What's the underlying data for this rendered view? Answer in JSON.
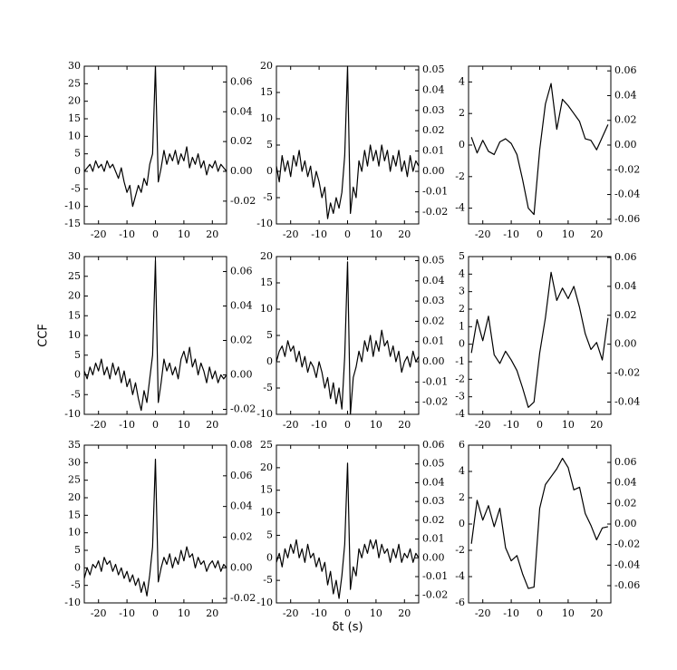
{
  "chart_data": [
    {
      "type": "line",
      "xlim": [
        -25,
        25
      ],
      "xticks": [
        -20,
        -10,
        0,
        10,
        20
      ],
      "ylim": [
        -15,
        30
      ],
      "yticks": [
        -15,
        -10,
        -5,
        0,
        5,
        10,
        15,
        20,
        25,
        30
      ],
      "y2lim": [
        -0.0353,
        0.0706
      ],
      "y2ticks": [
        -0.02,
        {
          "value": 0,
          "label": "0.00"
        },
        0.02,
        0.04,
        0.06
      ],
      "x": [
        -25,
        -24,
        -23,
        -22,
        -21,
        -20,
        -19,
        -18,
        -17,
        -16,
        -15,
        -14,
        -13,
        -12,
        -11,
        -10,
        -9,
        -8,
        -7,
        -6,
        -5,
        -4,
        -3,
        -2,
        -1,
        0,
        1,
        2,
        3,
        4,
        5,
        6,
        7,
        8,
        9,
        10,
        11,
        12,
        13,
        14,
        15,
        16,
        17,
        18,
        19,
        20,
        21,
        22,
        23,
        24,
        25
      ],
      "series": [
        {
          "color": "#000000",
          "values": [
            0,
            1,
            2,
            0,
            3,
            1,
            2,
            0,
            3,
            1,
            2,
            0,
            -2,
            1,
            -3,
            -6,
            -4,
            -10,
            -7,
            -4,
            -6,
            -2,
            -4,
            2,
            5,
            30,
            -3,
            1,
            6,
            2,
            5,
            3,
            6,
            2,
            5,
            3,
            7,
            1,
            4,
            2,
            5,
            1,
            3,
            -1,
            2,
            1,
            3,
            0,
            2,
            1,
            0
          ]
        }
      ]
    },
    {
      "type": "line",
      "xlim": [
        -25,
        25
      ],
      "xticks": [
        -20,
        -10,
        0,
        10,
        20
      ],
      "ylim": [
        -10,
        20
      ],
      "yticks": [
        -10,
        -5,
        0,
        5,
        10,
        15,
        20
      ],
      "y2lim": [
        -0.0259,
        0.0518
      ],
      "y2ticks": [
        -0.02,
        -0.01,
        {
          "value": 0,
          "label": "0.00"
        },
        0.01,
        0.02,
        0.03,
        0.04,
        0.05
      ],
      "x": [
        -25,
        -24,
        -23,
        -22,
        -21,
        -20,
        -19,
        -18,
        -17,
        -16,
        -15,
        -14,
        -13,
        -12,
        -11,
        -10,
        -9,
        -8,
        -7,
        -6,
        -5,
        -4,
        -3,
        -2,
        -1,
        0,
        1,
        2,
        3,
        4,
        5,
        6,
        7,
        8,
        9,
        10,
        11,
        12,
        13,
        14,
        15,
        16,
        17,
        18,
        19,
        20,
        21,
        22,
        23,
        24,
        25
      ],
      "series": [
        {
          "color": "#000000",
          "values": [
            1,
            -2,
            3,
            0,
            2,
            -1,
            3,
            1,
            4,
            0,
            2,
            -1,
            1,
            -3,
            0,
            -2,
            -5,
            -3,
            -9,
            -6,
            -8,
            -5,
            -7,
            -4,
            3,
            20,
            -8,
            -3,
            -5,
            2,
            0,
            4,
            1,
            5,
            2,
            4,
            1,
            5,
            2,
            4,
            0,
            3,
            1,
            4,
            0,
            2,
            -1,
            3,
            0,
            2,
            1
          ]
        }
      ]
    },
    {
      "type": "line",
      "xlim": [
        -25,
        25
      ],
      "xticks": [
        -20,
        -10,
        0,
        10,
        20
      ],
      "ylim": [
        -5,
        5
      ],
      "yticks": [
        -4,
        -2,
        0,
        2,
        4
      ],
      "y2lim": [
        -0.0638,
        0.0638
      ],
      "y2ticks": [
        -0.06,
        -0.04,
        -0.02,
        {
          "value": 0,
          "label": "0.00"
        },
        0.02,
        0.04,
        0.06
      ],
      "x": [
        -24,
        -22,
        -20,
        -18,
        -16,
        -14,
        -12,
        -10,
        -8,
        -6,
        -4,
        -2,
        0,
        2,
        4,
        6,
        8,
        10,
        12,
        14,
        16,
        18,
        20,
        22,
        24
      ],
      "series": [
        {
          "color": "#000000",
          "values": [
            0.5,
            -0.5,
            0.3,
            -0.4,
            -0.6,
            0.2,
            0.4,
            0.1,
            -0.6,
            -2.2,
            -4,
            -4.4,
            -0.3,
            2.6,
            3.9,
            1.0,
            2.9,
            2.5,
            2.0,
            1.5,
            0.4,
            0.3,
            -0.3,
            0.5,
            1.3
          ]
        }
      ]
    },
    {
      "type": "line",
      "xlim": [
        -25,
        25
      ],
      "xticks": [
        -20,
        -10,
        0,
        10,
        20
      ],
      "ylim": [
        -10,
        30
      ],
      "yticks": [
        -10,
        -5,
        0,
        5,
        10,
        15,
        20,
        25,
        30
      ],
      "y2lim": [
        -0.0229,
        0.0687
      ],
      "y2ticks": [
        -0.02,
        {
          "value": 0,
          "label": "0.00"
        },
        0.02,
        0.04,
        0.06
      ],
      "ylabel": "CCF",
      "x": [
        -25,
        -24,
        -23,
        -22,
        -21,
        -20,
        -19,
        -18,
        -17,
        -16,
        -15,
        -14,
        -13,
        -12,
        -11,
        -10,
        -9,
        -8,
        -7,
        -6,
        -5,
        -4,
        -3,
        -2,
        -1,
        0,
        1,
        2,
        3,
        4,
        5,
        6,
        7,
        8,
        9,
        10,
        11,
        12,
        13,
        14,
        15,
        16,
        17,
        18,
        19,
        20,
        21,
        22,
        23,
        24,
        25
      ],
      "series": [
        {
          "color": "#000000",
          "values": [
            1,
            -1,
            2,
            0,
            3,
            1,
            4,
            0,
            2,
            -1,
            3,
            0,
            2,
            -2,
            1,
            -3,
            -1,
            -5,
            -2,
            -6,
            -9,
            -4,
            -7,
            -1,
            5,
            29,
            -7,
            -2,
            4,
            1,
            3,
            0,
            2,
            -1,
            4,
            6,
            3,
            7,
            2,
            4,
            0,
            3,
            1,
            -2,
            2,
            -1,
            1,
            -2,
            0,
            -1,
            0
          ]
        }
      ]
    },
    {
      "type": "line",
      "xlim": [
        -25,
        25
      ],
      "xticks": [
        -20,
        -10,
        0,
        10,
        20
      ],
      "ylim": [
        -10,
        20
      ],
      "yticks": [
        -10,
        -5,
        0,
        5,
        10,
        15,
        20
      ],
      "y2lim": [
        -0.026,
        0.052
      ],
      "y2ticks": [
        -0.02,
        -0.01,
        {
          "value": 0,
          "label": "0.00"
        },
        0.01,
        0.02,
        0.03,
        0.04,
        0.05
      ],
      "x": [
        -25,
        -24,
        -23,
        -22,
        -21,
        -20,
        -19,
        -18,
        -17,
        -16,
        -15,
        -14,
        -13,
        -12,
        -11,
        -10,
        -9,
        -8,
        -7,
        -6,
        -5,
        -4,
        -3,
        -2,
        -1,
        0,
        1,
        2,
        3,
        4,
        5,
        6,
        7,
        8,
        9,
        10,
        11,
        12,
        13,
        14,
        15,
        16,
        17,
        18,
        19,
        20,
        21,
        22,
        23,
        24,
        25
      ],
      "series": [
        {
          "color": "#000000",
          "values": [
            0,
            2,
            3,
            1,
            4,
            2,
            3,
            0,
            2,
            -1,
            1,
            -2,
            0,
            -1,
            -3,
            0,
            -2,
            -5,
            -3,
            -7,
            -4,
            -8,
            -5,
            -9,
            1,
            19,
            -10,
            -3,
            -1,
            2,
            0,
            4,
            2,
            5,
            1,
            4,
            2,
            6,
            3,
            4,
            1,
            3,
            0,
            2,
            -2,
            0,
            1,
            -1,
            2,
            0,
            1
          ]
        }
      ]
    },
    {
      "type": "line",
      "xlim": [
        -25,
        25
      ],
      "xticks": [
        -20,
        -10,
        0,
        10,
        20
      ],
      "ylim": [
        -4,
        5
      ],
      "yticks": [
        -4,
        -3,
        -2,
        -1,
        0,
        1,
        2,
        3,
        4,
        5
      ],
      "y2lim": [
        -0.0485,
        0.0606
      ],
      "y2ticks": [
        -0.04,
        -0.02,
        {
          "value": 0,
          "label": "0.00"
        },
        0.02,
        0.04,
        0.06
      ],
      "x": [
        -24,
        -22,
        -20,
        -18,
        -16,
        -14,
        -12,
        -10,
        -8,
        -6,
        -4,
        -2,
        0,
        2,
        4,
        6,
        8,
        10,
        12,
        14,
        16,
        18,
        20,
        22,
        24
      ],
      "series": [
        {
          "color": "#000000",
          "values": [
            -0.5,
            1.4,
            0.2,
            1.6,
            -0.6,
            -1.1,
            -0.4,
            -0.9,
            -1.5,
            -2.5,
            -3.6,
            -3.3,
            -0.5,
            1.5,
            4.1,
            2.5,
            3.2,
            2.6,
            3.3,
            2.1,
            0.6,
            -0.3,
            0.1,
            -0.9,
            1.5
          ]
        }
      ]
    },
    {
      "type": "line",
      "xlim": [
        -25,
        25
      ],
      "xticks": [
        -20,
        -10,
        0,
        10,
        20
      ],
      "ylim": [
        -10,
        35
      ],
      "yticks": [
        -10,
        -5,
        0,
        5,
        10,
        15,
        20,
        25,
        30,
        35
      ],
      "y2lim": [
        -0.0229,
        0.08
      ],
      "y2ticks": [
        -0.02,
        {
          "value": 0,
          "label": "0.00"
        },
        0.02,
        0.04,
        0.06,
        0.08
      ],
      "x": [
        -25,
        -24,
        -23,
        -22,
        -21,
        -20,
        -19,
        -18,
        -17,
        -16,
        -15,
        -14,
        -13,
        -12,
        -11,
        -10,
        -9,
        -8,
        -7,
        -6,
        -5,
        -4,
        -3,
        -2,
        -1,
        0,
        1,
        2,
        3,
        4,
        5,
        6,
        7,
        8,
        9,
        10,
        11,
        12,
        13,
        14,
        15,
        16,
        17,
        18,
        19,
        20,
        21,
        22,
        23,
        24,
        25
      ],
      "series": [
        {
          "color": "#000000",
          "values": [
            -3,
            0,
            -2,
            1,
            0,
            2,
            -1,
            3,
            1,
            2,
            -1,
            1,
            -2,
            0,
            -3,
            -1,
            -4,
            -2,
            -5,
            -3,
            -7,
            -4,
            -8,
            -2,
            6,
            31,
            -4,
            0,
            3,
            1,
            4,
            0,
            3,
            1,
            5,
            2,
            6,
            3,
            4,
            0,
            3,
            1,
            2,
            -1,
            1,
            2,
            0,
            2,
            -1,
            1,
            0
          ]
        }
      ]
    },
    {
      "type": "line",
      "xlim": [
        -25,
        25
      ],
      "xticks": [
        -20,
        -10,
        0,
        10,
        20
      ],
      "ylim": [
        -10,
        25
      ],
      "yticks": [
        -10,
        -5,
        0,
        5,
        10,
        15,
        20,
        25
      ],
      "y2lim": [
        -0.024,
        0.06
      ],
      "y2ticks": [
        -0.02,
        -0.01,
        {
          "value": 0,
          "label": "0.00"
        },
        0.01,
        0.02,
        0.03,
        0.04,
        0.05,
        0.06
      ],
      "xlabel": "δt (s)",
      "x": [
        -25,
        -24,
        -23,
        -22,
        -21,
        -20,
        -19,
        -18,
        -17,
        -16,
        -15,
        -14,
        -13,
        -12,
        -11,
        -10,
        -9,
        -8,
        -7,
        -6,
        -5,
        -4,
        -3,
        -2,
        -1,
        0,
        1,
        2,
        3,
        4,
        5,
        6,
        7,
        8,
        9,
        10,
        11,
        12,
        13,
        14,
        15,
        16,
        17,
        18,
        19,
        20,
        21,
        22,
        23,
        24,
        25
      ],
      "series": [
        {
          "color": "#000000",
          "values": [
            -1,
            1,
            -2,
            2,
            0,
            3,
            1,
            4,
            0,
            2,
            -1,
            3,
            0,
            1,
            -2,
            0,
            -3,
            -1,
            -6,
            -3,
            -8,
            -5,
            -9,
            -4,
            3,
            21,
            -7,
            -2,
            -4,
            2,
            0,
            3,
            1,
            4,
            2,
            4,
            0,
            3,
            1,
            2,
            -1,
            2,
            0,
            3,
            -1,
            1,
            0,
            2,
            -1,
            1,
            0
          ]
        }
      ]
    },
    {
      "type": "line",
      "xlim": [
        -25,
        25
      ],
      "xticks": [
        -20,
        -10,
        0,
        10,
        20
      ],
      "ylim": [
        -6,
        6
      ],
      "yticks": [
        -6,
        -4,
        -2,
        0,
        2,
        4,
        6
      ],
      "y2lim": [
        -0.0768,
        0.0768
      ],
      "y2ticks": [
        -0.06,
        -0.04,
        -0.02,
        {
          "value": 0,
          "label": "0.00"
        },
        0.02,
        0.04,
        0.06
      ],
      "x": [
        -24,
        -22,
        -20,
        -18,
        -16,
        -14,
        -12,
        -10,
        -8,
        -6,
        -4,
        -2,
        0,
        2,
        4,
        6,
        8,
        10,
        12,
        14,
        16,
        18,
        20,
        22,
        24
      ],
      "series": [
        {
          "color": "#000000",
          "values": [
            -1.5,
            1.8,
            0.3,
            1.4,
            -0.2,
            1.2,
            -1.8,
            -2.8,
            -2.4,
            -3.8,
            -4.9,
            -4.8,
            1.2,
            3.0,
            3.6,
            4.2,
            5.0,
            4.3,
            2.6,
            2.8,
            0.8,
            -0.1,
            -1.2,
            -0.3,
            -0.2
          ]
        }
      ]
    }
  ]
}
